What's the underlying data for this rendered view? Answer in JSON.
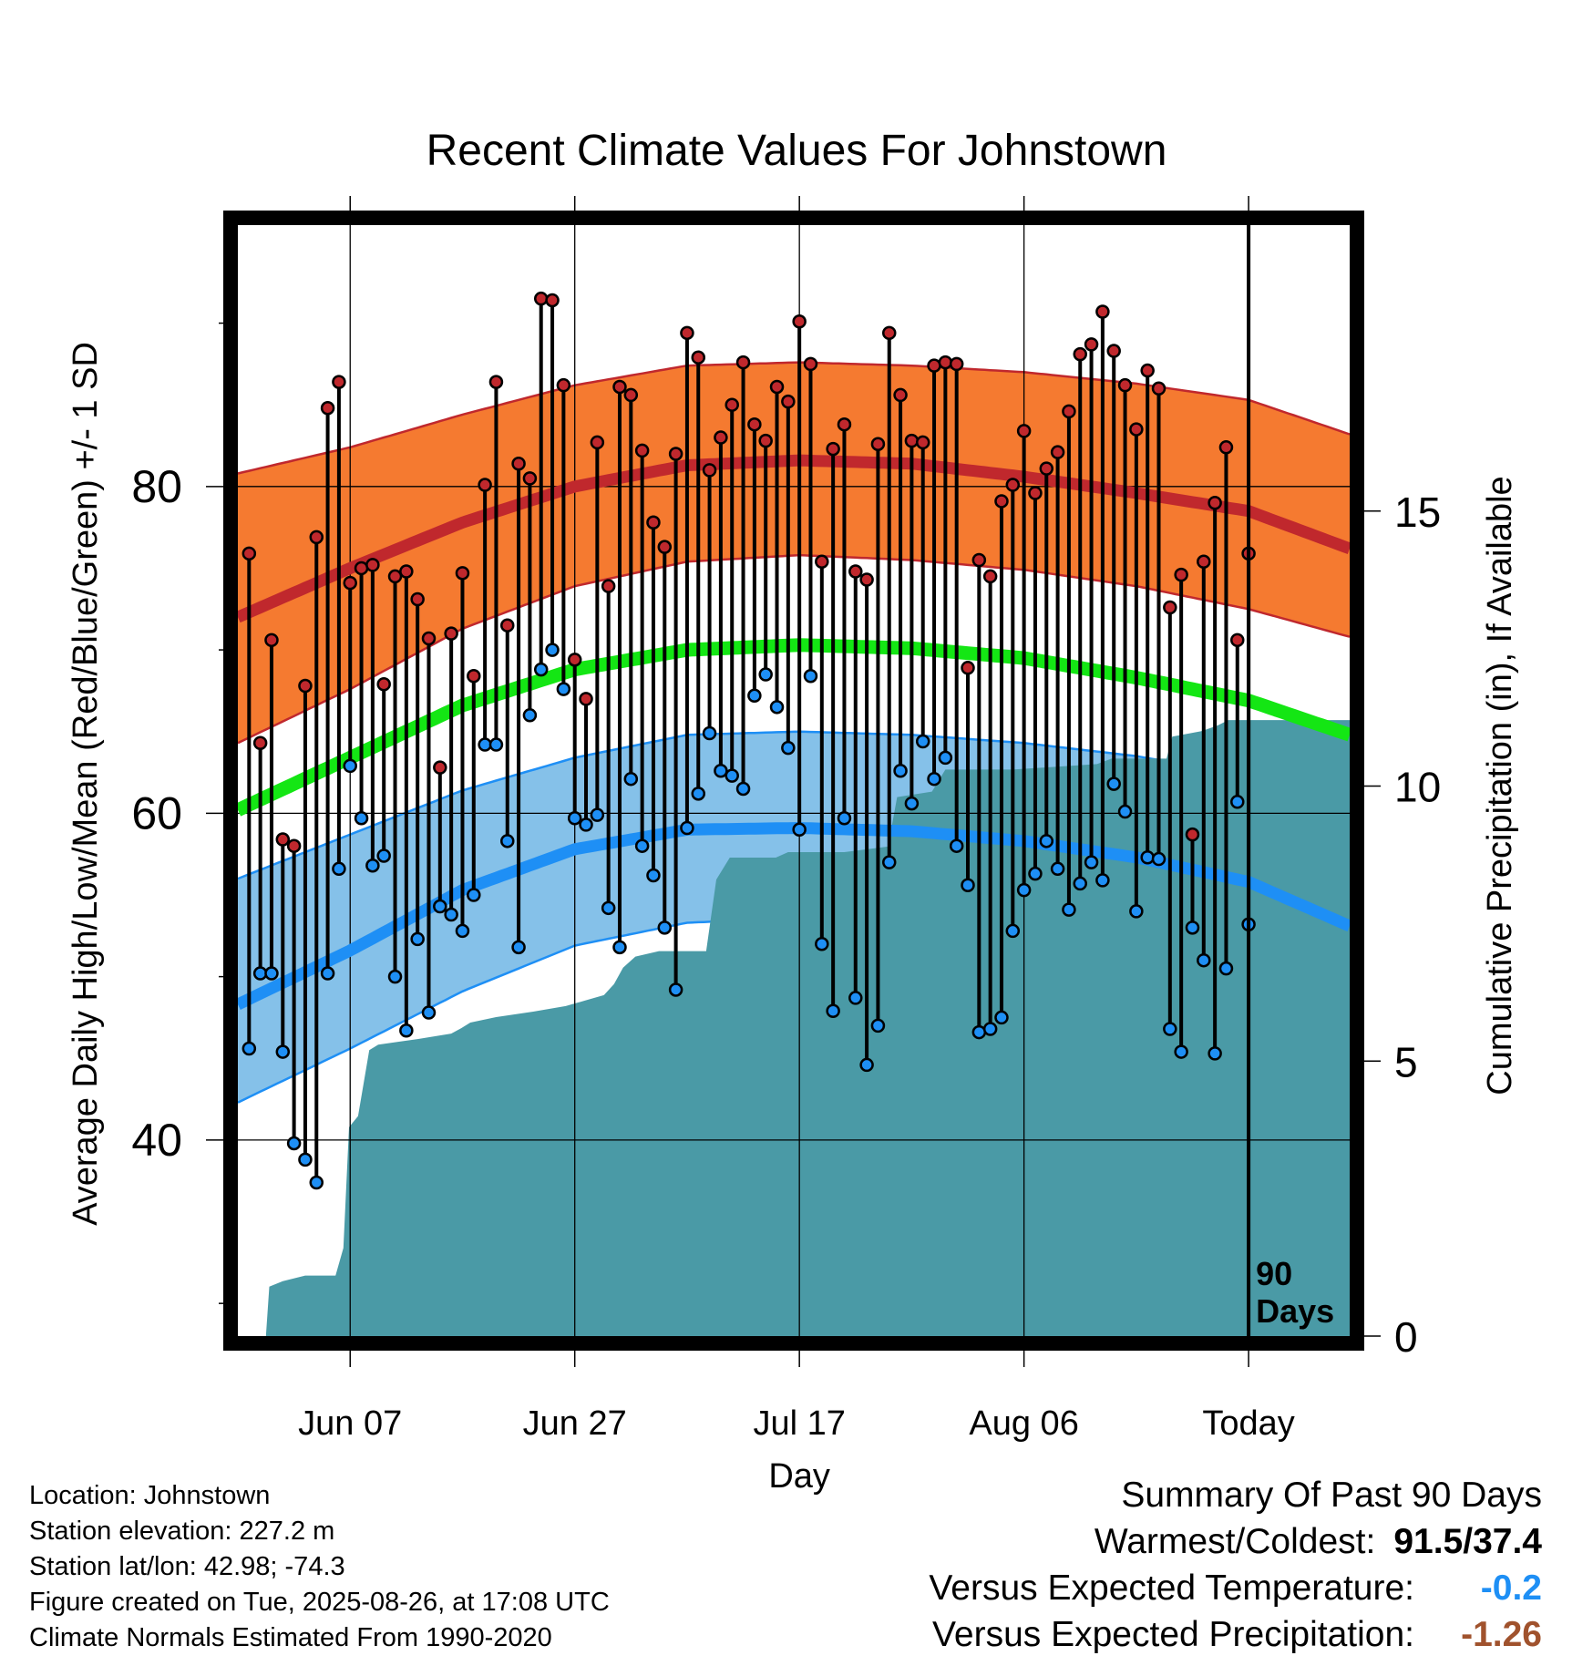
{
  "title": "Recent Climate Values For Johnstown",
  "colors": {
    "high": "#c0282d",
    "high_band": "#f57a30",
    "low": "#1e8ff5",
    "low_band": "#85c1e9",
    "mean": "#14e614",
    "precip": "#4a9aa6",
    "vs_temp": "#1e8ff5",
    "vs_precip": "#a0522d"
  },
  "info": {
    "location": "Location: Johnstown",
    "elevation": "Station elevation: 227.2 m",
    "latlon": "Station lat/lon: 42.98; -74.3",
    "created": "Figure created on Tue, 2025-08-26, at 17:08 UTC",
    "normals": "Climate Normals Estimated From 1990-2020"
  },
  "summary": {
    "heading": "Summary Of Past 90 Days",
    "warm_cold_label": "Warmest/Coldest:",
    "warm_cold_value": "91.5/37.4",
    "vs_temp_label": "Versus Expected Temperature:",
    "vs_temp_value": "-0.2",
    "vs_precip_label": "Versus Expected Precipitation:",
    "vs_precip_value": "-1.26"
  },
  "chart_data": {
    "type": "line",
    "title": "Recent Climate Values For Johnstown",
    "xlabel": "Day",
    "ylabel_left": "Average Daily High/Low/Mean (Red/Blue/Green) +/- 1 SD",
    "ylabel_right": "Cumulative Precipitation (in), If Available",
    "x_range_days": [
      -90,
      9
    ],
    "x_ticks": [
      {
        "day": -80,
        "label": "Jun 07"
      },
      {
        "day": -60,
        "label": "Jun 27"
      },
      {
        "day": -40,
        "label": "Jul 17"
      },
      {
        "day": -20,
        "label": "Aug 06"
      },
      {
        "day": 0,
        "label": "Today"
      }
    ],
    "ylim_left": [
      28,
      96
    ],
    "yticks_left": [
      40,
      60,
      80
    ],
    "yminor_left": [
      30,
      50,
      70,
      90
    ],
    "ylim_right": [
      0,
      20.2
    ],
    "yticks_right": [
      0,
      5,
      10,
      15
    ],
    "today_label": "90\nDays",
    "normals": {
      "days": [
        -90,
        -80,
        -70,
        -60,
        -50,
        -40,
        -30,
        -20,
        -10,
        0,
        9
      ],
      "high_mean": [
        72.0,
        75.0,
        77.8,
        80.0,
        81.3,
        81.6,
        81.4,
        80.6,
        79.6,
        78.5,
        76.2
      ],
      "high_upper": [
        80.8,
        82.4,
        84.4,
        86.2,
        87.4,
        87.6,
        87.4,
        87.0,
        86.3,
        85.3,
        83.2
      ],
      "high_lower": [
        64.3,
        67.6,
        71.3,
        73.9,
        75.4,
        75.8,
        75.5,
        74.9,
        73.9,
        72.5,
        70.8
      ],
      "low_mean": [
        48.3,
        51.6,
        55.3,
        57.8,
        59.0,
        59.1,
        58.9,
        58.3,
        57.3,
        55.8,
        53.1
      ],
      "low_upper": [
        56.0,
        58.7,
        61.4,
        63.4,
        64.8,
        65.0,
        64.8,
        64.3,
        63.5,
        62.3,
        60.5
      ],
      "low_lower": [
        42.3,
        45.6,
        49.1,
        51.9,
        53.3,
        53.6,
        53.4,
        52.5,
        50.9,
        49.2,
        47.2
      ],
      "mean": [
        60.2,
        63.4,
        66.6,
        68.8,
        70.0,
        70.3,
        70.1,
        69.5,
        68.3,
        66.9,
        64.8
      ]
    },
    "series": [
      {
        "name": "High",
        "values": [
          75.9,
          64.3,
          70.6,
          58.4,
          58.0,
          67.8,
          76.9,
          84.8,
          86.4,
          74.1,
          75.0,
          75.2,
          67.9,
          74.5,
          74.8,
          73.1,
          70.7,
          62.8,
          71.0,
          74.7,
          68.4,
          80.1,
          86.4,
          71.5,
          81.4,
          80.5,
          91.5,
          91.4,
          86.2,
          69.4,
          67.0,
          82.7,
          73.9,
          86.1,
          85.6,
          82.2,
          77.8,
          76.3,
          82.0,
          89.4,
          87.9,
          81.0,
          83.0,
          85.0,
          87.6,
          83.8,
          82.8,
          86.1,
          85.2,
          90.1,
          87.5,
          75.4,
          82.3,
          83.8,
          74.8,
          74.3,
          82.6,
          89.4,
          85.6,
          82.8,
          82.7,
          87.4,
          87.6,
          87.5,
          68.9,
          75.5,
          74.5,
          79.1,
          80.1,
          83.4,
          79.6,
          81.1,
          82.1,
          84.6,
          88.1,
          88.7,
          90.7,
          88.3,
          86.2,
          83.5,
          87.1,
          86.0,
          72.6,
          74.6,
          58.7,
          75.4,
          79.0,
          82.4,
          70.6,
          75.9
        ]
      },
      {
        "name": "Low",
        "values": [
          45.6,
          50.2,
          50.2,
          45.4,
          39.8,
          38.8,
          37.4,
          50.2,
          56.6,
          62.9,
          59.7,
          56.8,
          57.4,
          50.0,
          46.7,
          52.3,
          47.8,
          54.3,
          53.8,
          52.8,
          55.0,
          64.2,
          64.2,
          58.3,
          51.8,
          66.0,
          68.8,
          70.0,
          67.6,
          59.7,
          59.3,
          59.9,
          54.2,
          51.8,
          62.1,
          58.0,
          56.2,
          53.0,
          49.2,
          59.1,
          61.2,
          64.9,
          62.6,
          62.3,
          61.5,
          67.2,
          68.5,
          66.5,
          64.0,
          59.0,
          68.4,
          52.0,
          47.9,
          59.7,
          48.7,
          44.6,
          47.0,
          57.0,
          62.6,
          60.6,
          64.4,
          62.1,
          63.4,
          58.0,
          55.6,
          46.6,
          46.8,
          47.5,
          52.8,
          55.3,
          56.3,
          58.3,
          56.6,
          54.1,
          55.7,
          57.0,
          55.9,
          61.8,
          60.1,
          54.0,
          57.3,
          57.2,
          46.8,
          45.4,
          53.0,
          51.0,
          45.3,
          50.5,
          60.7,
          53.2
        ]
      }
    ],
    "precip_cumulative": [
      [
        -90,
        0.0
      ],
      [
        -87.5,
        0.0
      ],
      [
        -87.2,
        0.9
      ],
      [
        -86,
        1.0
      ],
      [
        -84,
        1.1
      ],
      [
        -81.3,
        1.1
      ],
      [
        -80.6,
        1.6
      ],
      [
        -80.1,
        3.8
      ],
      [
        -79.3,
        4.0
      ],
      [
        -78.3,
        5.2
      ],
      [
        -77.5,
        5.3
      ],
      [
        -74,
        5.4
      ],
      [
        -71,
        5.5
      ],
      [
        -70.1,
        5.6
      ],
      [
        -69.3,
        5.7
      ],
      [
        -67,
        5.8
      ],
      [
        -63.7,
        5.9
      ],
      [
        -60.8,
        6.0
      ],
      [
        -59.1,
        6.1
      ],
      [
        -57.4,
        6.2
      ],
      [
        -56.5,
        6.4
      ],
      [
        -55.7,
        6.7
      ],
      [
        -54.6,
        6.9
      ],
      [
        -52.5,
        7.0
      ],
      [
        -48.3,
        7.0
      ],
      [
        -47.4,
        8.3
      ],
      [
        -46.2,
        8.7
      ],
      [
        -44.5,
        8.7
      ],
      [
        -42.1,
        8.7
      ],
      [
        -41,
        8.8
      ],
      [
        -36,
        8.8
      ],
      [
        -32.1,
        8.9
      ],
      [
        -31.3,
        9.8
      ],
      [
        -28.2,
        9.9
      ],
      [
        -27,
        10.3
      ],
      [
        -25.3,
        10.3
      ],
      [
        -21,
        10.3
      ],
      [
        -13.5,
        10.4
      ],
      [
        -12.2,
        10.5
      ],
      [
        -7.3,
        10.5
      ],
      [
        -6.8,
        10.9
      ],
      [
        -4.2,
        11.0
      ],
      [
        -2.8,
        11.1
      ],
      [
        -1.8,
        11.2
      ],
      [
        0,
        11.2
      ],
      [
        9,
        11.2
      ]
    ]
  }
}
